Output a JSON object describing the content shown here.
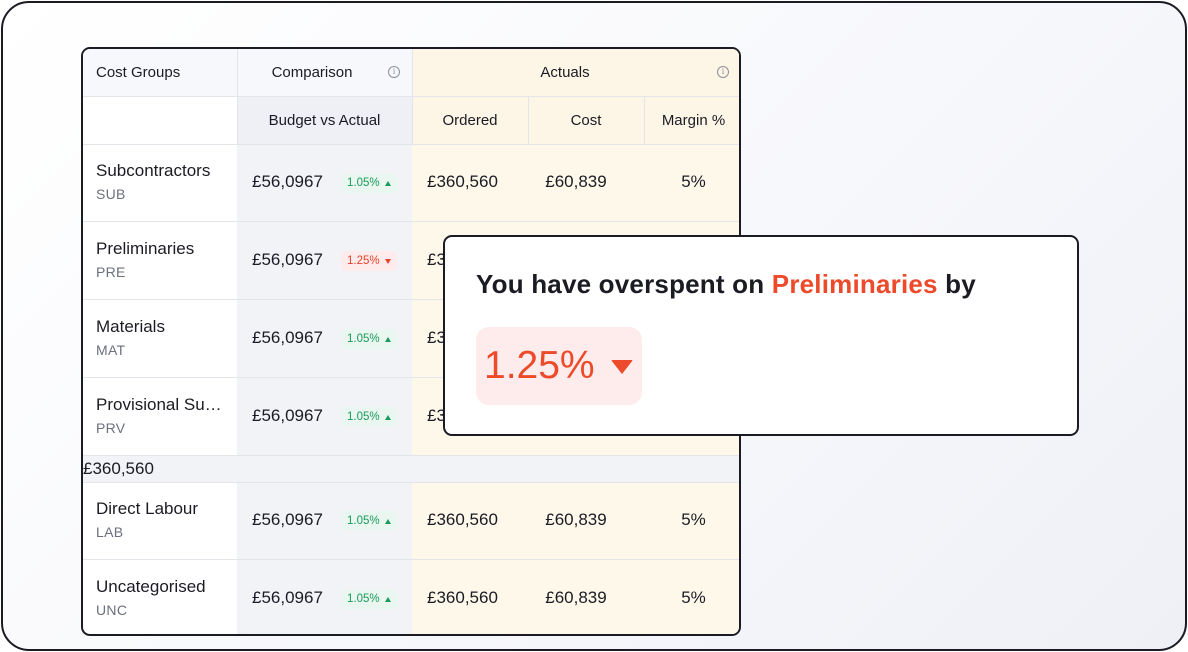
{
  "table": {
    "header": {
      "cost_groups": "Cost Groups",
      "comparison": "Comparison",
      "actuals": "Actuals",
      "budget_vs_actual": "Budget vs Actual",
      "ordered": "Ordered",
      "cost": "Cost",
      "margin": "Margin %"
    },
    "rows": [
      {
        "name": "Subcontractors",
        "code": "SUB",
        "budget": "£56,0967",
        "variance": "1.05%",
        "direction": "up",
        "ordered": "£360,560",
        "cost": "£60,839",
        "margin": "5%"
      },
      {
        "name": "Preliminaries",
        "code": "PRE",
        "budget": "£56,0967",
        "variance": "1.25%",
        "direction": "down",
        "ordered": "£3",
        "cost": "",
        "margin": ""
      },
      {
        "name": "Materials",
        "code": "MAT",
        "budget": "£56,0967",
        "variance": "1.05%",
        "direction": "up",
        "ordered": "£3",
        "cost": "",
        "margin": ""
      },
      {
        "name": "Provisional Su…",
        "code": "PRV",
        "budget": "£56,0967",
        "variance": "1.05%",
        "direction": "up",
        "ordered": "£3",
        "cost": "",
        "margin": ""
      }
    ],
    "subtotal": "£360,560",
    "rows_after": [
      {
        "name": "Direct Labour",
        "code": "LAB",
        "budget": "£56,0967",
        "variance": "1.05%",
        "direction": "up",
        "ordered": "£360,560",
        "cost": "£60,839",
        "margin": "5%"
      },
      {
        "name": "Uncategorised",
        "code": "UNC",
        "budget": "£56,0967",
        "variance": "1.05%",
        "direction": "up",
        "ordered": "£360,560",
        "cost": "£60,839",
        "margin": "5%"
      }
    ]
  },
  "popup": {
    "prefix": "You have overspent on",
    "highlight": "Preliminaries",
    "suffix": "by",
    "value": "1.25%",
    "direction": "down"
  },
  "colors": {
    "accent_red": "#ec4a2a",
    "positive_green": "#1a9a5c",
    "actuals_bg": "#fdf8ea",
    "comparison_bg": "#f1f3f7"
  },
  "icons": {
    "info": "info-icon",
    "up": "triangle-up-icon",
    "down": "triangle-down-icon"
  }
}
